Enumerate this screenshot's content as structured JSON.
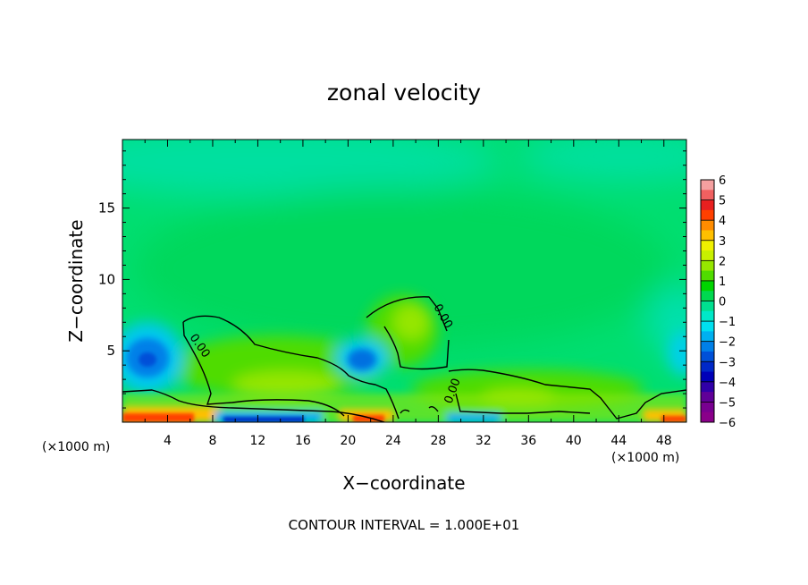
{
  "chart_data": {
    "type": "heatmap",
    "title": "zonal velocity",
    "xlabel": "X−coordinate",
    "ylabel": "Z−coordinate",
    "x_unit_left": "(×1000 m)",
    "x_unit_right": "(×1000 m)",
    "footer": "CONTOUR INTERVAL = 1.000E+01",
    "xlim": [
      0,
      50
    ],
    "ylim": [
      0,
      19.8
    ],
    "x_ticks": [
      "4",
      "8",
      "12",
      "16",
      "20",
      "24",
      "28",
      "32",
      "36",
      "40",
      "44",
      "48"
    ],
    "y_ticks": [
      "5",
      "10",
      "15"
    ],
    "colorbar": {
      "min": -6,
      "max": 6,
      "labels": [
        "6",
        "5",
        "4",
        "3",
        "2",
        "1",
        "0",
        "−1",
        "−2",
        "−3",
        "−4",
        "−5",
        "−6"
      ],
      "colors": [
        "#f4a0a0",
        "#f06060",
        "#e82020",
        "#ff4000",
        "#ff8c00",
        "#ffc000",
        "#f0f000",
        "#c8f000",
        "#96e600",
        "#50dc00",
        "#00d400",
        "#00d850",
        "#00e090",
        "#00e8c8",
        "#00e0f0",
        "#00b0f0",
        "#0080e8",
        "#0050d8",
        "#0028c8",
        "#0000b8",
        "#3000a8",
        "#600098",
        "#780090",
        "#8a008a"
      ]
    },
    "contour_labels": [
      "0.00",
      "0.00",
      "0.00"
    ]
  }
}
